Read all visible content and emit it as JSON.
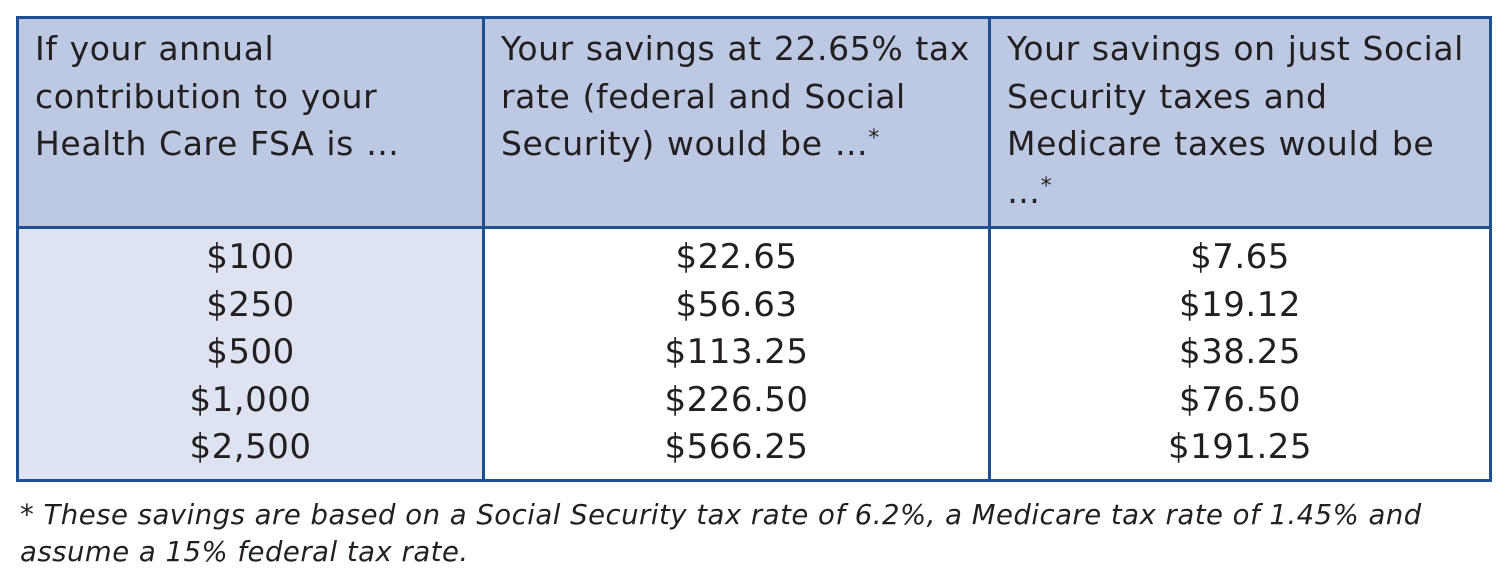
{
  "table": {
    "headers": [
      {
        "text": "If your annual contribution to your Health Care FSA is …",
        "marker": ""
      },
      {
        "text": "Your savings at 22.65% tax rate (federal and Social Security) would be …",
        "marker": "*"
      },
      {
        "text": "Your savings on just Social Security taxes and Medicare taxes would be …",
        "marker": "*"
      }
    ],
    "columns": [
      [
        "$100",
        "$250",
        "$500",
        "$1,000",
        "$2,500"
      ],
      [
        "$22.65",
        "$56.63",
        "$113.25",
        "$226.50",
        "$566.25"
      ],
      [
        "$7.65",
        "$19.12",
        "$38.25",
        "$76.50",
        "$191.25"
      ]
    ]
  },
  "footnote": "* These savings are based on a Social Security tax rate of 6.2%, a Medicare tax rate of 1.45% and assume a 15% federal tax rate.",
  "colors": {
    "border": "#1d4f91",
    "header_bg": "#bdc8e2",
    "first_col_bg": "#dde3f0",
    "text": "#231f20"
  }
}
